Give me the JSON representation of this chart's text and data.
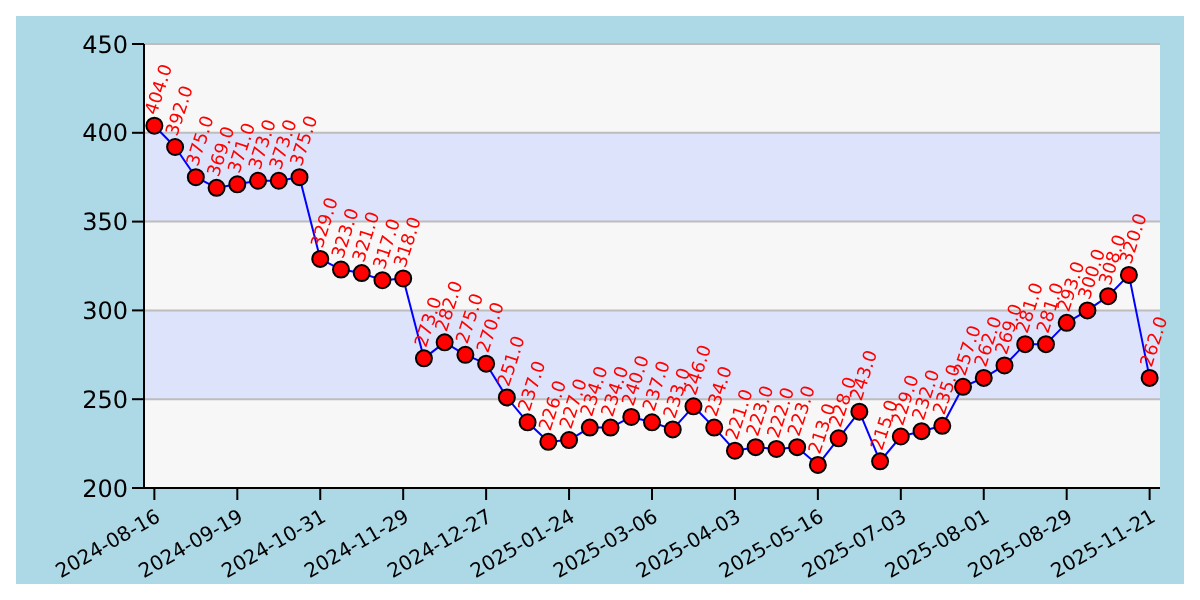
{
  "chart_data": {
    "type": "line",
    "categories": [
      "2024-08-16",
      null,
      null,
      null,
      "2024-09-19",
      null,
      null,
      null,
      "2024-10-31",
      null,
      null,
      null,
      "2024-11-29",
      null,
      null,
      null,
      "2024-12-27",
      null,
      null,
      null,
      "2025-01-24",
      null,
      null,
      null,
      "2025-03-06",
      null,
      null,
      null,
      "2025-04-03",
      null,
      null,
      null,
      "2025-05-16",
      null,
      null,
      null,
      "2025-07-03",
      null,
      null,
      null,
      "2025-08-01",
      null,
      null,
      null,
      "2025-08-29",
      null,
      null,
      null,
      "2025-11-21"
    ],
    "series": [
      {
        "color": "#0000ff",
        "values": [
          404,
          392,
          375,
          369,
          371,
          373,
          373,
          375,
          329,
          323,
          321,
          317,
          318,
          273,
          282,
          275,
          270,
          251,
          237,
          226,
          227,
          234,
          234,
          240,
          237,
          233,
          246,
          234,
          221,
          223,
          222,
          223,
          213,
          228,
          243,
          215,
          229,
          232,
          235,
          257,
          262,
          269,
          281,
          281,
          293,
          300,
          308,
          320,
          262
        ],
        "value_labels": [
          "404.0",
          "392.0",
          "375.0",
          "369.0",
          "371.0",
          "373.0",
          "373.0",
          "375.0",
          "329.0",
          "323.0",
          "321.0",
          "317.0",
          "318.0",
          "273.0",
          "282.0",
          "275.0",
          "270.0",
          "251.0",
          "237.0",
          "226.0",
          "227.0",
          "234.0",
          "234.0",
          "240.0",
          "237.0",
          "233.0",
          "246.0",
          "234.0",
          "221.0",
          "223.0",
          "222.0",
          "223.0",
          "213.0",
          "228.0",
          "243.0",
          "215.0",
          "229.0",
          "232.0",
          "235.0",
          "257.0",
          "262.0",
          "269.0",
          "281.0",
          "281.0",
          "293.0",
          "300.0",
          "308.0",
          "320.0",
          "262.0"
        ]
      }
    ],
    "ylim": [
      200,
      450
    ],
    "yticks": [
      200,
      250,
      300,
      350,
      400,
      450
    ],
    "grid": "y",
    "marker": "circle",
    "bands": [
      {
        "axis": "y",
        "from": 250,
        "to": 300,
        "color": "#dde3fa"
      },
      {
        "axis": "y",
        "from": 350,
        "to": 400,
        "color": "#dde3fa"
      }
    ]
  }
}
